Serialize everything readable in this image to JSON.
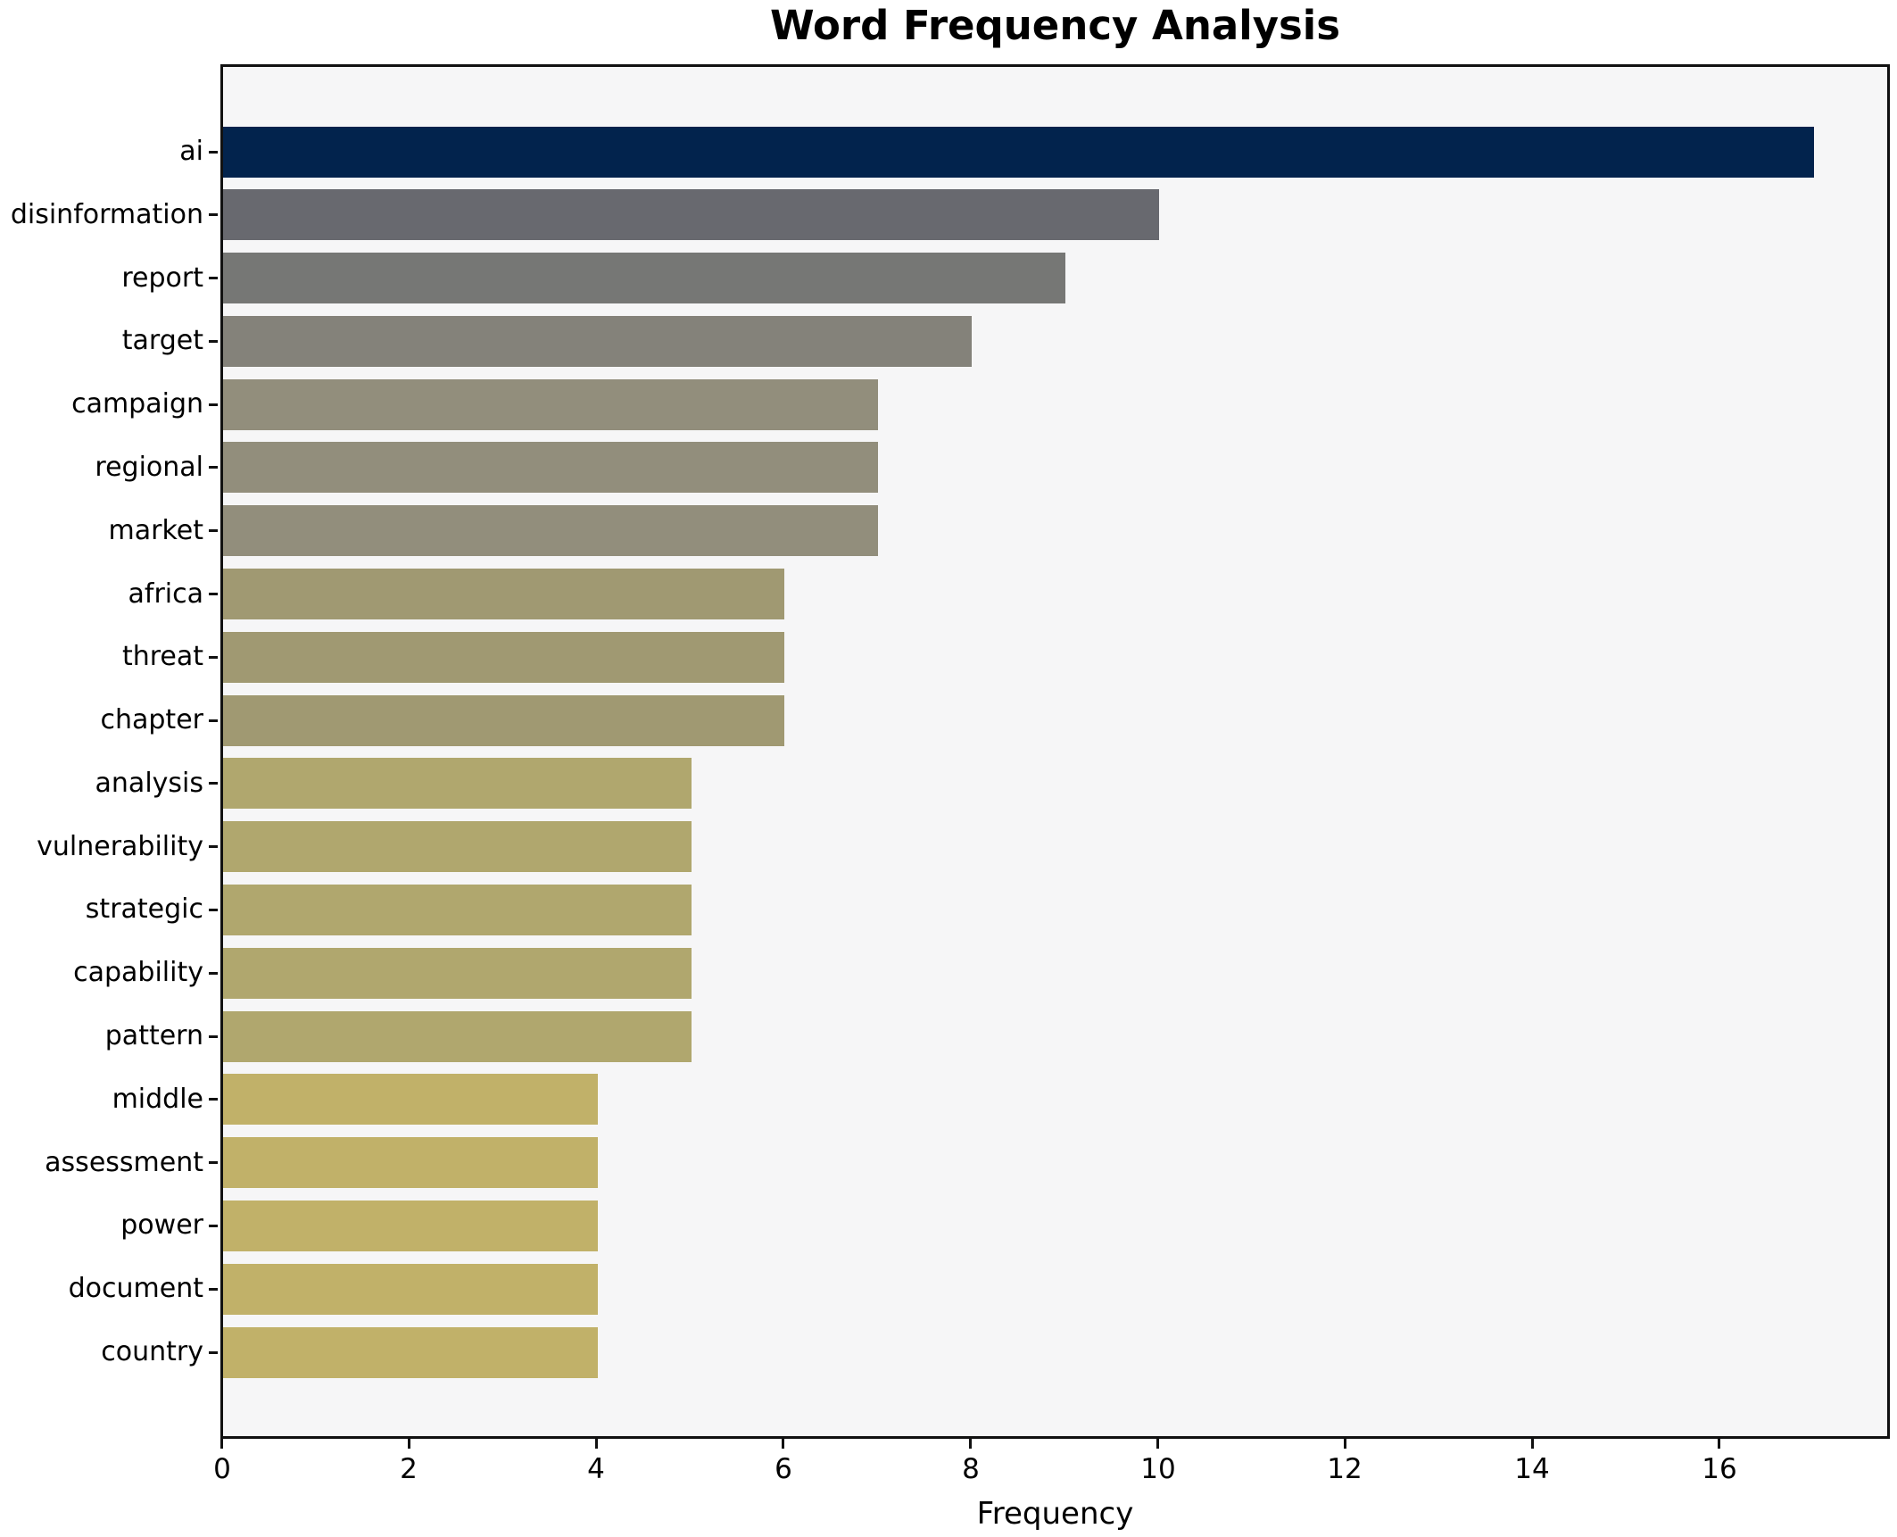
{
  "figure": {
    "background": "#ffffff",
    "plot_background": "#f6f6f7",
    "spine_color": "#111111",
    "text_color": "#000000"
  },
  "chart_data": {
    "type": "bar",
    "orientation": "horizontal",
    "title": "Word Frequency Analysis",
    "xlabel": "Frequency",
    "ylabel": "",
    "categories": [
      "ai",
      "disinformation",
      "report",
      "target",
      "campaign",
      "regional",
      "market",
      "africa",
      "threat",
      "chapter",
      "analysis",
      "vulnerability",
      "strategic",
      "capability",
      "pattern",
      "middle",
      "assessment",
      "power",
      "document",
      "country"
    ],
    "values": [
      17,
      10,
      9,
      8,
      7,
      7,
      7,
      6,
      6,
      6,
      5,
      5,
      5,
      5,
      5,
      4,
      4,
      4,
      4,
      4
    ],
    "bar_colors": [
      "#02234d",
      "#68696f",
      "#767775",
      "#84827a",
      "#928e7c",
      "#928e7c",
      "#928e7c",
      "#a09972",
      "#a09972",
      "#a09972",
      "#b0a76e",
      "#b0a76e",
      "#b0a76e",
      "#b0a76e",
      "#b0a76e",
      "#c1b169",
      "#c1b169",
      "#c1b169",
      "#c1b169",
      "#c1b169"
    ],
    "x_tick_labels": [
      "0",
      "2",
      "4",
      "6",
      "8",
      "10",
      "12",
      "14",
      "16"
    ],
    "x_tick_values": [
      0,
      2,
      4,
      6,
      8,
      10,
      12,
      14,
      16
    ],
    "xlim": [
      0,
      17.84
    ],
    "grid": false,
    "legend_position": "none"
  }
}
